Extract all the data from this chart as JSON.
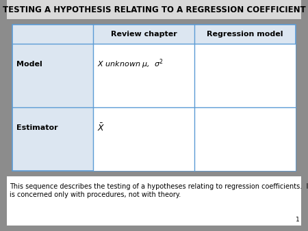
{
  "title": "TESTING A HYPOTHESIS RELATING TO A REGRESSION COEFFICIENT",
  "title_fontsize": 8.5,
  "outer_bg": "#8c8c8c",
  "title_bg": "#d9d9d9",
  "table_bg": "#dce6f1",
  "cell_bg": "#ffffff",
  "footer_bg": "#ffffff",
  "header_row": [
    "",
    "Review chapter",
    "Regression model"
  ],
  "row_labels": [
    "Model",
    "Estimator"
  ],
  "col1_content_model": "$X$ unknown $\\mu$,  $\\sigma^2$",
  "col1_content_estimator": "$\\bar{X}$",
  "footer_text": "This sequence describes the testing of a hypotheses relating to regression coefficients.  It\nis concerned only with procedures, not with theory.",
  "footer_fontsize": 7.0,
  "page_number": "1",
  "grid_color": "#5b9bd5",
  "header_fontsize": 8.0,
  "cell_fontsize": 8.0,
  "row_label_fontsize": 8.0
}
